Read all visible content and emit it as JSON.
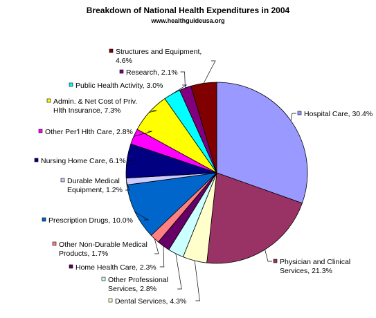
{
  "chart_data": {
    "type": "pie",
    "title": "Breakdown of National Health Expenditures in 2004",
    "subtitle": "www.healthguideusa.org",
    "slices": [
      {
        "lines": [
          "Hospital Care, 30.4%"
        ],
        "value": 30.4,
        "color": "#9999ff"
      },
      {
        "lines": [
          "Physician and Clinical",
          "Services, 21.3%"
        ],
        "value": 21.3,
        "color": "#993366"
      },
      {
        "lines": [
          "Dental Services, 4.3%"
        ],
        "value": 4.3,
        "color": "#ffffcc"
      },
      {
        "lines": [
          "Other Professional",
          "Services, 2.8%"
        ],
        "value": 2.8,
        "color": "#ccffff"
      },
      {
        "lines": [
          "Home Health Care, 2.3%"
        ],
        "value": 2.3,
        "color": "#660066"
      },
      {
        "lines": [
          "Other Non-Durable Medical",
          "Products, 1.7%"
        ],
        "value": 1.7,
        "color": "#ff8080"
      },
      {
        "lines": [
          "Prescription Drugs, 10.0%"
        ],
        "value": 10.0,
        "color": "#0066cc"
      },
      {
        "lines": [
          "Durable Medical",
          "Equipment, 1.2%"
        ],
        "value": 1.2,
        "color": "#ccccff"
      },
      {
        "lines": [
          "Nursing Home Care, 6.1%"
        ],
        "value": 6.1,
        "color": "#000080"
      },
      {
        "lines": [
          "Other Per'l Hlth Care, 2.8%"
        ],
        "value": 2.8,
        "color": "#ff00ff"
      },
      {
        "lines": [
          "Admin. & Net Cost of Priv.",
          "Hlth Insurance, 7.3%"
        ],
        "value": 7.3,
        "color": "#ffff00"
      },
      {
        "lines": [
          "Public Health Activity, 3.0%"
        ],
        "value": 3.0,
        "color": "#00ffff"
      },
      {
        "lines": [
          "Research, 2.1%"
        ],
        "value": 2.1,
        "color": "#800080"
      },
      {
        "lines": [
          "Structures and Equipment,",
          "4.6%"
        ],
        "value": 4.6,
        "color": "#800000"
      }
    ]
  }
}
